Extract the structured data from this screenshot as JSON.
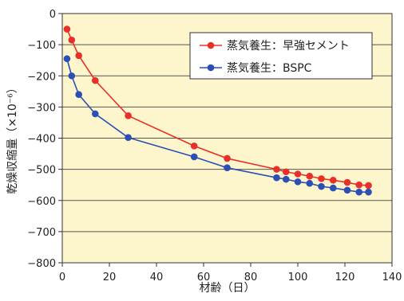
{
  "chart_data": {
    "type": "line",
    "title": "",
    "xlabel": "材齢（日）",
    "ylabel": "乾燥収縮量（×10⁻⁶）",
    "xlim": [
      0,
      140
    ],
    "ylim": [
      -800,
      0
    ],
    "xticks": [
      0,
      20,
      40,
      60,
      80,
      100,
      120,
      140
    ],
    "yticks": [
      0,
      -100,
      -200,
      -300,
      -400,
      -500,
      -600,
      -700,
      -800
    ],
    "grid": "horizontal",
    "plot_background": "#fdf6cc",
    "legend_position": "top-right",
    "series": [
      {
        "name": "蒸気養生：早強セメント",
        "color": "#e8302a",
        "x": [
          2,
          4,
          7,
          14,
          28,
          56,
          70,
          91,
          95,
          100,
          105,
          110,
          115,
          121,
          126,
          130
        ],
        "y": [
          -50,
          -85,
          -135,
          -215,
          -328,
          -425,
          -465,
          -500,
          -508,
          -515,
          -522,
          -530,
          -535,
          -542,
          -550,
          -552
        ]
      },
      {
        "name": "蒸気養生：BSPC",
        "color": "#2b4fb5",
        "x": [
          2,
          4,
          7,
          14,
          28,
          56,
          70,
          91,
          95,
          100,
          105,
          110,
          115,
          121,
          126,
          130
        ],
        "y": [
          -145,
          -200,
          -260,
          -322,
          -398,
          -460,
          -495,
          -527,
          -532,
          -540,
          -545,
          -555,
          -560,
          -567,
          -573,
          -573
        ]
      }
    ]
  }
}
